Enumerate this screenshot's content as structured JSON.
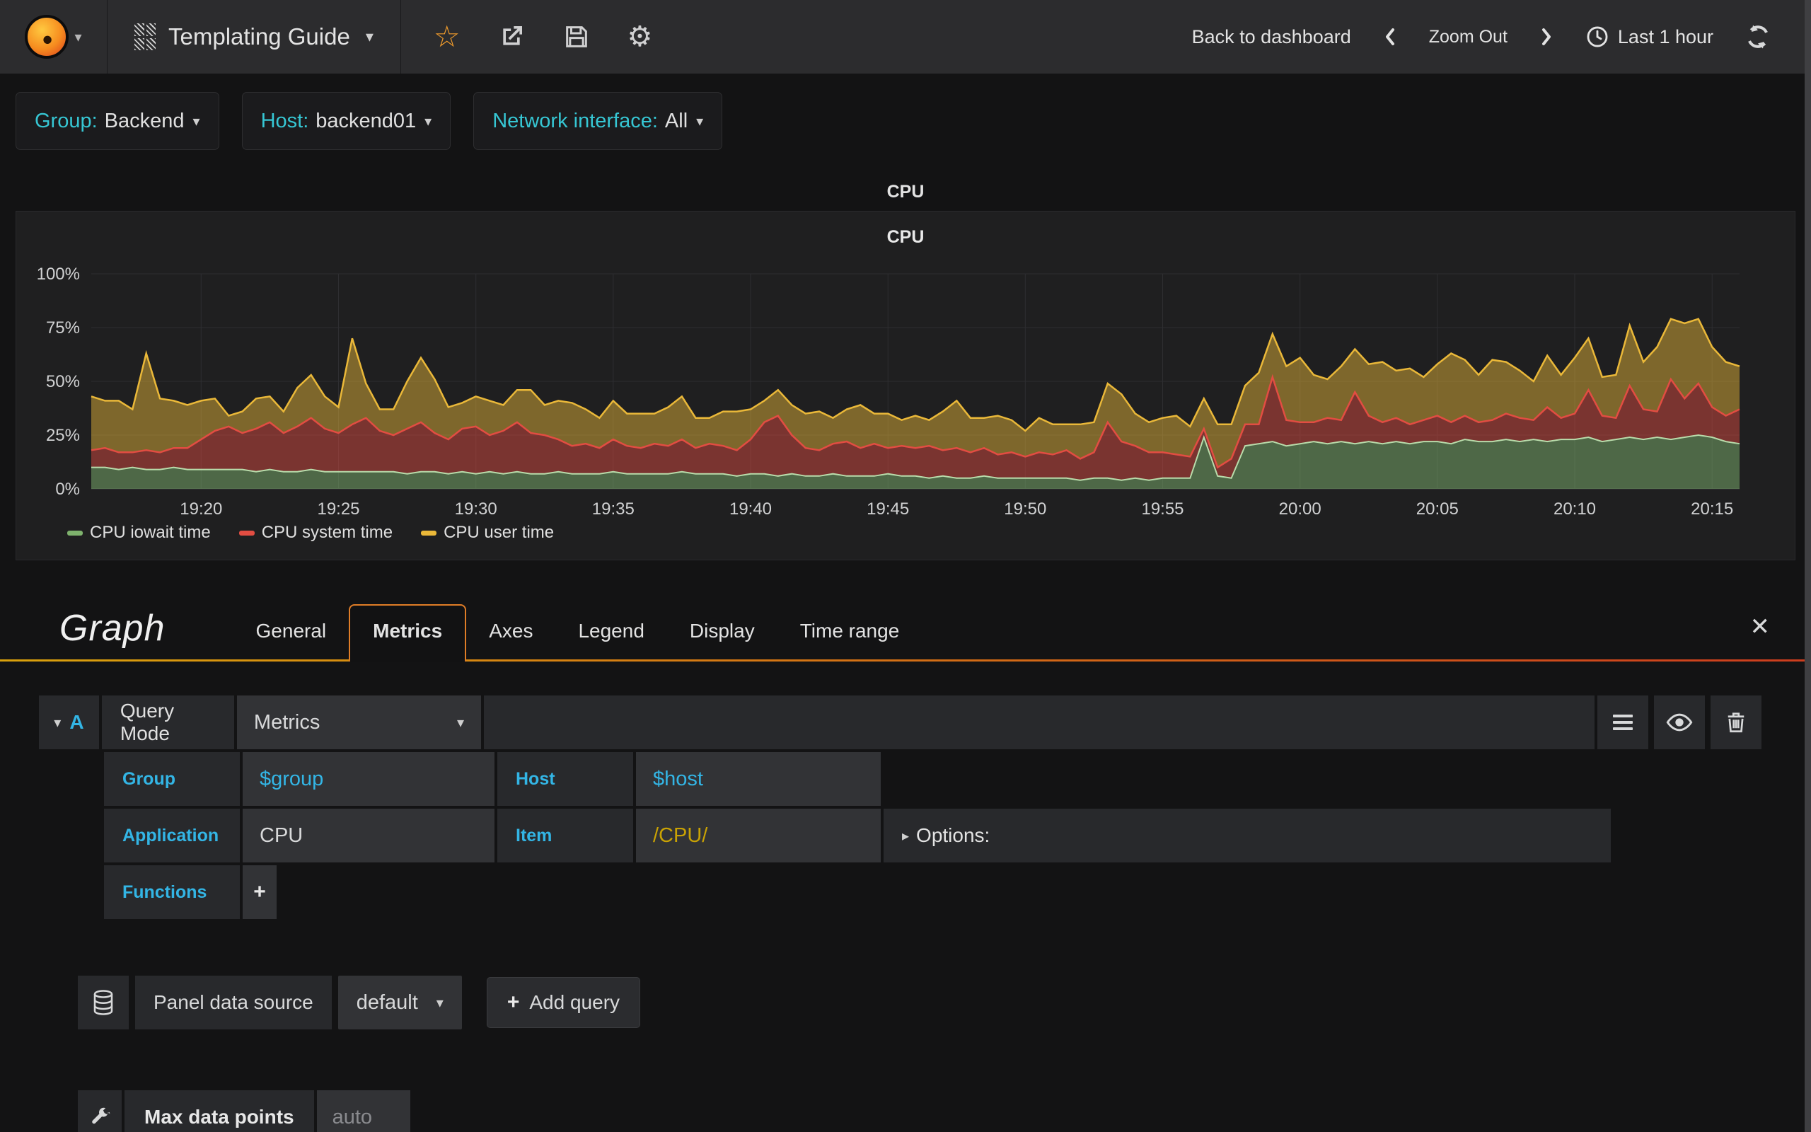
{
  "navbar": {
    "dashboard_title": "Templating Guide",
    "back_to_dashboard": "Back to dashboard",
    "zoom_out": "Zoom Out",
    "time_range": "Last 1 hour",
    "star_glyph": "☆",
    "gear_glyph": "⚙",
    "caret": "▾"
  },
  "variables": [
    {
      "label": "Group:",
      "value": "Backend"
    },
    {
      "label": "Host:",
      "value": "backend01"
    },
    {
      "label": "Network interface:",
      "value": "All"
    }
  ],
  "row_title": "CPU",
  "panel": {
    "title": "CPU"
  },
  "chart_data": {
    "type": "area",
    "stacked": true,
    "title": "CPU",
    "ylabel": "",
    "xlabel": "",
    "ylim": [
      0,
      100
    ],
    "grid": true,
    "legend_position": "bottom-left",
    "y_ticks": [
      "0%",
      "25%",
      "50%",
      "75%",
      "100%"
    ],
    "x_ticks": [
      "19:20",
      "19:25",
      "19:30",
      "19:35",
      "19:40",
      "19:45",
      "19:50",
      "19:55",
      "20:00",
      "20:05",
      "20:10",
      "20:15"
    ],
    "x_tick_indices": [
      8,
      18,
      28,
      38,
      48,
      58,
      68,
      78,
      88,
      98,
      108,
      118
    ],
    "x_start": "19:16",
    "x_step_minutes": 0.5,
    "series": [
      {
        "name": "CPU iowait time",
        "color": "#7eb26d",
        "values": [
          10,
          10,
          9,
          10,
          9,
          9,
          10,
          9,
          9,
          9,
          9,
          9,
          8,
          9,
          8,
          8,
          9,
          8,
          8,
          8,
          8,
          8,
          8,
          7,
          8,
          8,
          7,
          8,
          7,
          8,
          7,
          8,
          7,
          7,
          8,
          7,
          7,
          7,
          8,
          7,
          7,
          7,
          7,
          8,
          7,
          7,
          7,
          6,
          7,
          7,
          6,
          7,
          6,
          6,
          7,
          6,
          6,
          6,
          7,
          6,
          6,
          5,
          6,
          5,
          5,
          6,
          5,
          5,
          5,
          5,
          5,
          5,
          4,
          5,
          5,
          4,
          5,
          4,
          5,
          5,
          5,
          24,
          6,
          5,
          20,
          21,
          22,
          20,
          21,
          22,
          21,
          22,
          21,
          22,
          21,
          22,
          21,
          22,
          22,
          21,
          23,
          22,
          22,
          23,
          22,
          23,
          22,
          23,
          23,
          24,
          22,
          23,
          24,
          23,
          24,
          23,
          24,
          25,
          24,
          22,
          21
        ]
      },
      {
        "name": "CPU system time",
        "color": "#e24d42",
        "values": [
          8,
          9,
          8,
          7,
          9,
          8,
          9,
          10,
          14,
          18,
          20,
          17,
          20,
          22,
          18,
          21,
          24,
          20,
          18,
          22,
          25,
          19,
          17,
          21,
          23,
          18,
          16,
          20,
          22,
          17,
          20,
          23,
          19,
          18,
          15,
          13,
          14,
          12,
          15,
          13,
          12,
          14,
          13,
          15,
          12,
          14,
          13,
          12,
          16,
          24,
          28,
          18,
          13,
          12,
          14,
          16,
          13,
          15,
          12,
          14,
          13,
          15,
          12,
          14,
          12,
          13,
          11,
          12,
          10,
          12,
          11,
          13,
          10,
          12,
          26,
          18,
          15,
          13,
          12,
          11,
          10,
          4,
          4,
          9,
          10,
          9,
          30,
          12,
          10,
          9,
          12,
          10,
          24,
          12,
          10,
          11,
          9,
          10,
          12,
          10,
          11,
          9,
          10,
          12,
          11,
          9,
          16,
          10,
          12,
          22,
          12,
          10,
          24,
          14,
          12,
          28,
          18,
          24,
          14,
          12,
          16
        ]
      },
      {
        "name": "CPU user time",
        "color": "#eab839",
        "values": [
          25,
          22,
          24,
          20,
          45,
          25,
          22,
          20,
          18,
          15,
          5,
          10,
          14,
          12,
          10,
          18,
          20,
          15,
          12,
          40,
          16,
          10,
          12,
          22,
          30,
          25,
          15,
          12,
          14,
          16,
          12,
          15,
          20,
          14,
          18,
          20,
          16,
          14,
          18,
          15,
          16,
          14,
          18,
          20,
          14,
          12,
          16,
          18,
          14,
          10,
          12,
          14,
          16,
          18,
          12,
          15,
          20,
          14,
          16,
          12,
          15,
          12,
          18,
          22,
          16,
          14,
          18,
          15,
          12,
          16,
          14,
          12,
          16,
          14,
          18,
          22,
          15,
          14,
          16,
          18,
          14,
          14,
          20,
          16,
          18,
          24,
          20,
          25,
          30,
          22,
          18,
          25,
          20,
          24,
          28,
          22,
          26,
          20,
          24,
          32,
          26,
          22,
          28,
          24,
          22,
          18,
          24,
          20,
          26,
          24,
          18,
          20,
          28,
          22,
          30,
          28,
          35,
          30,
          28,
          25,
          20
        ]
      }
    ]
  },
  "editor": {
    "title": "Graph",
    "tabs": [
      "General",
      "Metrics",
      "Axes",
      "Legend",
      "Display",
      "Time range"
    ],
    "active_tab": "Metrics",
    "close_glyph": "✕"
  },
  "query": {
    "ref": "A",
    "collapse_caret": "▾",
    "mode_label": "Query Mode",
    "mode_value": "Metrics",
    "group_label": "Group",
    "group_value": "$group",
    "host_label": "Host",
    "host_value": "$host",
    "app_label": "Application",
    "app_value": "CPU",
    "item_label": "Item",
    "item_value": "/CPU/",
    "options_disclosure": "▸",
    "options_label": "Options:",
    "functions_label": "Functions",
    "add_function": "+"
  },
  "datasource": {
    "label": "Panel data source",
    "value": "default",
    "caret": "▾",
    "add_query_plus": "+",
    "add_query": "Add query"
  },
  "settings": {
    "max_data_points_label": "Max data points",
    "max_data_points_placeholder": "auto"
  },
  "colors": {
    "accent_blue": "#33b5e5",
    "template_cyan": "#36c6d3",
    "item_gold": "#c9a204",
    "star_orange": "#ef9b2c",
    "tab_border_orange": "#e07d27",
    "panel_bg": "#1f1f20"
  }
}
